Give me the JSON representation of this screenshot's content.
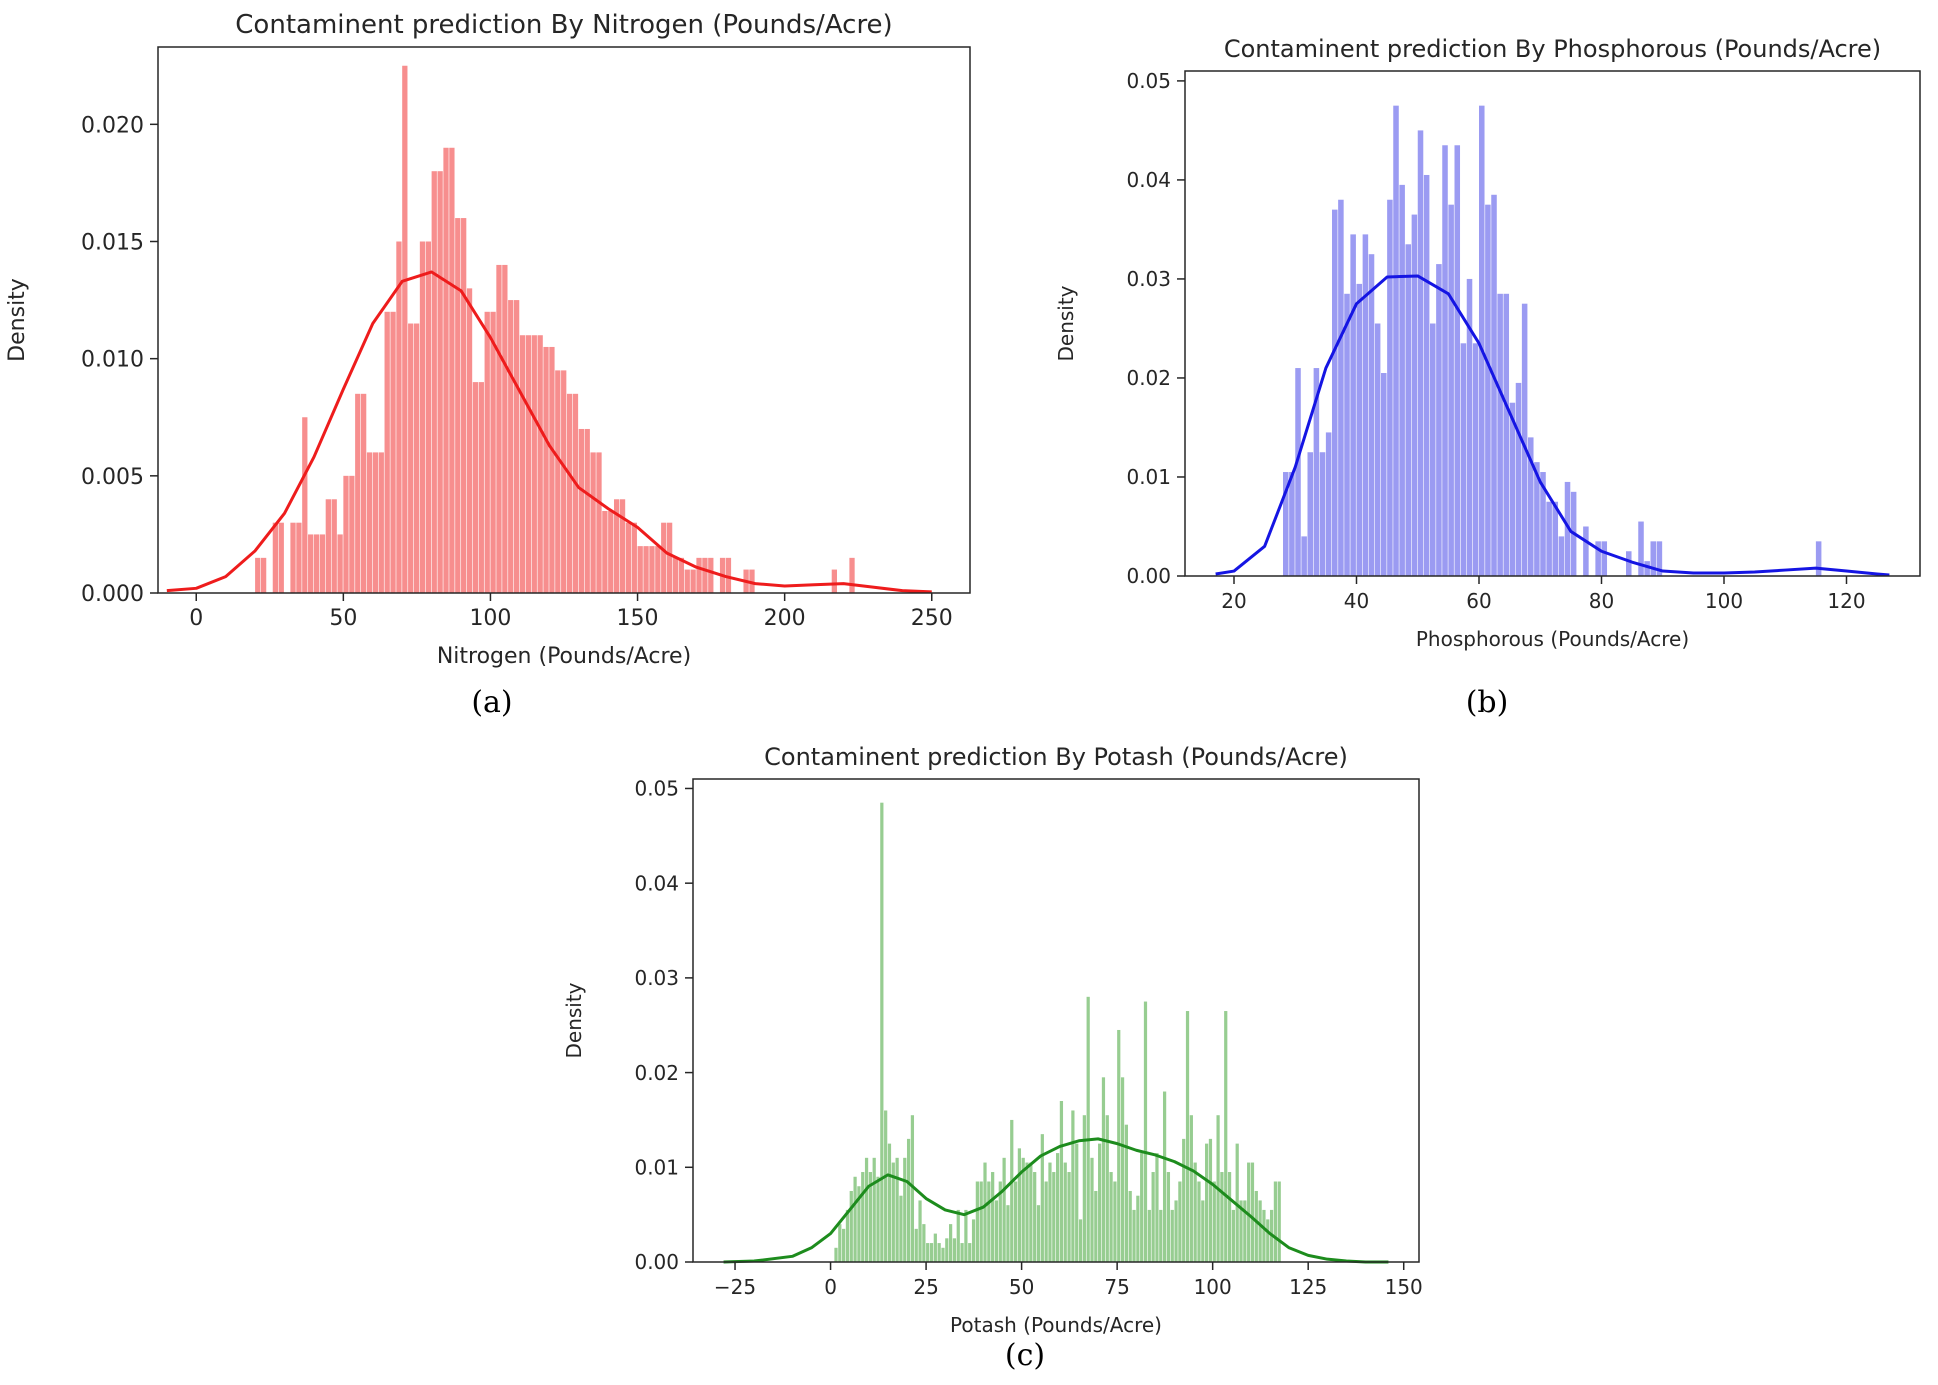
{
  "chart_data": [
    {
      "type": "histogram",
      "panel_label": "(a)",
      "title": "Contaminent prediction By Nitrogen (Pounds/Acre)",
      "xlabel": "Nitrogen (Pounds/Acre)",
      "ylabel": "Density",
      "xlim": [
        -13,
        263
      ],
      "ylim": [
        0,
        0.0233
      ],
      "xticks": [
        0,
        50,
        100,
        150,
        200,
        250
      ],
      "xtick_labels": [
        "0",
        "50",
        "100",
        "150",
        "200",
        "250"
      ],
      "yticks": [
        0,
        0.005,
        0.01,
        0.015,
        0.02
      ],
      "ytick_labels": [
        "0.000",
        "0.005",
        "0.010",
        "0.015",
        "0.020"
      ],
      "bar_color": "#f78e8e",
      "line_color": "#ee1c1c",
      "bin_start": 20,
      "bin_width": 2,
      "bar_heights": [
        0.0015,
        0.0015,
        0.0,
        0.003,
        0.003,
        0.0,
        0.003,
        0.003,
        0.0075,
        0.0025,
        0.0025,
        0.0025,
        0.004,
        0.004,
        0.0025,
        0.005,
        0.005,
        0.0085,
        0.0085,
        0.006,
        0.006,
        0.006,
        0.012,
        0.012,
        0.015,
        0.0225,
        0.0115,
        0.0115,
        0.015,
        0.015,
        0.018,
        0.018,
        0.019,
        0.019,
        0.016,
        0.016,
        0.013,
        0.009,
        0.009,
        0.012,
        0.012,
        0.014,
        0.014,
        0.0125,
        0.0125,
        0.011,
        0.011,
        0.011,
        0.011,
        0.0105,
        0.0105,
        0.0095,
        0.0095,
        0.0085,
        0.0085,
        0.007,
        0.007,
        0.006,
        0.006,
        0.0035,
        0.0035,
        0.004,
        0.004,
        0.003,
        0.003,
        0.002,
        0.002,
        0.002,
        0.002,
        0.003,
        0.003,
        0.0015,
        0.0015,
        0.001,
        0.001,
        0.0015,
        0.0015,
        0.0015,
        0.0,
        0.0015,
        0.0015,
        0.0,
        0.0,
        0.001,
        0.001,
        0.0,
        0.0,
        0.0,
        0.0,
        0.0,
        0.0,
        0.0,
        0.0,
        0.0,
        0.0,
        0.0,
        0.0,
        0.0,
        0.001,
        0.0,
        0.0,
        0.0015
      ],
      "kde_x": [
        -10,
        0,
        10,
        20,
        30,
        40,
        50,
        60,
        70,
        80,
        90,
        100,
        110,
        120,
        130,
        140,
        150,
        160,
        170,
        180,
        190,
        200,
        210,
        220,
        230,
        240,
        250
      ],
      "kde_y": [
        0.0001,
        0.0002,
        0.0007,
        0.0018,
        0.0034,
        0.0058,
        0.0087,
        0.0115,
        0.0133,
        0.0137,
        0.0129,
        0.0109,
        0.0086,
        0.0063,
        0.0045,
        0.0036,
        0.0028,
        0.0017,
        0.0011,
        0.0007,
        0.0004,
        0.0003,
        0.00035,
        0.0004,
        0.00025,
        0.0001,
        5e-05
      ]
    },
    {
      "type": "histogram",
      "panel_label": "(b)",
      "title": "Contaminent prediction By Phosphorous (Pounds/Acre)",
      "xlabel": "Phosphorous (Pounds/Acre)",
      "ylabel": "Density",
      "xlim": [
        12,
        132
      ],
      "ylim": [
        0,
        0.051
      ],
      "xticks": [
        20,
        40,
        60,
        80,
        100,
        120
      ],
      "xtick_labels": [
        "20",
        "40",
        "60",
        "80",
        "100",
        "120"
      ],
      "yticks": [
        0,
        0.01,
        0.02,
        0.03,
        0.04,
        0.05
      ],
      "ytick_labels": [
        "0.00",
        "0.01",
        "0.02",
        "0.03",
        "0.04",
        "0.05"
      ],
      "bar_color": "#9b9bf2",
      "line_color": "#1515e3",
      "bin_start": 28,
      "bin_width": 1,
      "bar_heights": [
        0.0105,
        0.0105,
        0.021,
        0.004,
        0.0125,
        0.021,
        0.0125,
        0.0145,
        0.037,
        0.038,
        0.0285,
        0.0345,
        0.0295,
        0.0345,
        0.0325,
        0.0255,
        0.0205,
        0.038,
        0.0475,
        0.0395,
        0.0335,
        0.0365,
        0.045,
        0.0405,
        0.0255,
        0.0315,
        0.0435,
        0.0375,
        0.0435,
        0.0235,
        0.03,
        0.0235,
        0.0475,
        0.0375,
        0.0385,
        0.0285,
        0.0285,
        0.0175,
        0.0195,
        0.0275,
        0.014,
        0.0115,
        0.0105,
        0.0075,
        0.0075,
        0.004,
        0.0095,
        0.0085,
        0.0,
        0.005,
        0.0,
        0.0035,
        0.0035,
        0.0,
        0.0,
        0.0,
        0.0025,
        0.0,
        0.0055,
        0.0015,
        0.0035,
        0.0035,
        0.0,
        0.0,
        0.0,
        0.0,
        0.0,
        0.0,
        0.0,
        0.0,
        0.0,
        0.0,
        0.0,
        0.0,
        0.0,
        0.0,
        0.0,
        0.0,
        0.0,
        0.0,
        0.0,
        0.0,
        0.0,
        0.0,
        0.0,
        0.0,
        0.0,
        0.0035
      ],
      "kde_x": [
        17,
        20,
        25,
        30,
        35,
        40,
        45,
        50,
        55,
        60,
        65,
        70,
        75,
        80,
        85,
        90,
        95,
        100,
        105,
        110,
        115,
        120,
        125,
        127
      ],
      "kde_y": [
        0.0002,
        0.0005,
        0.003,
        0.011,
        0.021,
        0.0275,
        0.0302,
        0.0303,
        0.0285,
        0.0235,
        0.0165,
        0.0095,
        0.0045,
        0.0025,
        0.0014,
        0.0005,
        0.0003,
        0.0003,
        0.0004,
        0.0006,
        0.0008,
        0.0005,
        0.0002,
        0.0001
      ]
    },
    {
      "type": "histogram",
      "panel_label": "(c)",
      "title": "Contaminent prediction By Potash (Pounds/Acre)",
      "xlabel": "Potash (Pounds/Acre)",
      "ylabel": "Density",
      "xlim": [
        -36,
        154
      ],
      "ylim": [
        0,
        0.051
      ],
      "xticks": [
        -25,
        0,
        25,
        50,
        75,
        100,
        125,
        150
      ],
      "xtick_labels": [
        "−25",
        "0",
        "25",
        "50",
        "75",
        "100",
        "125",
        "150"
      ],
      "yticks": [
        0,
        0.01,
        0.02,
        0.03,
        0.04,
        0.05
      ],
      "ytick_labels": [
        "0.00",
        "0.01",
        "0.02",
        "0.03",
        "0.04",
        "0.05"
      ],
      "bar_color": "#97cd91",
      "line_color": "#1d8c1d",
      "bin_start": 1,
      "bin_width": 1,
      "bar_heights": [
        0.0015,
        0.004,
        0.0035,
        0.0055,
        0.0075,
        0.009,
        0.008,
        0.0095,
        0.011,
        0.0095,
        0.011,
        0.009,
        0.0485,
        0.016,
        0.0125,
        0.0105,
        0.011,
        0.007,
        0.011,
        0.013,
        0.0155,
        0.0035,
        0.0065,
        0.004,
        0.002,
        0.002,
        0.003,
        0.002,
        0.0015,
        0.0025,
        0.004,
        0.0025,
        0.0055,
        0.002,
        0.0055,
        0.002,
        0.0045,
        0.0085,
        0.0085,
        0.0105,
        0.0085,
        0.0095,
        0.0065,
        0.0085,
        0.011,
        0.006,
        0.015,
        0.0085,
        0.012,
        0.011,
        0.0105,
        0.0105,
        0.0095,
        0.006,
        0.0135,
        0.0085,
        0.0105,
        0.0095,
        0.0115,
        0.017,
        0.0105,
        0.0095,
        0.016,
        0.0125,
        0.0045,
        0.0155,
        0.028,
        0.011,
        0.0075,
        0.0125,
        0.0195,
        0.0155,
        0.0095,
        0.0085,
        0.0245,
        0.0195,
        0.0145,
        0.0075,
        0.0055,
        0.007,
        0.0115,
        0.0275,
        0.0055,
        0.0095,
        0.0115,
        0.0055,
        0.018,
        0.0095,
        0.0055,
        0.0065,
        0.0085,
        0.013,
        0.0265,
        0.0155,
        0.0105,
        0.0085,
        0.0065,
        0.0125,
        0.013,
        0.0085,
        0.0155,
        0.0095,
        0.0265,
        0.0095,
        0.0055,
        0.0125,
        0.0065,
        0.0065,
        0.0105,
        0.0105,
        0.0075,
        0.0065,
        0.0055,
        0.0045,
        0.0055,
        0.0085,
        0.0085
      ],
      "kde_x": [
        -28,
        -20,
        -10,
        -5,
        0,
        5,
        10,
        15,
        20,
        25,
        30,
        35,
        40,
        45,
        50,
        55,
        60,
        65,
        70,
        75,
        80,
        85,
        90,
        95,
        100,
        105,
        110,
        115,
        120,
        125,
        130,
        135,
        140,
        146
      ],
      "kde_y": [
        0.0,
        0.0001,
        0.0006,
        0.0015,
        0.003,
        0.0055,
        0.008,
        0.0092,
        0.0085,
        0.0067,
        0.0055,
        0.005,
        0.0058,
        0.0075,
        0.0095,
        0.0112,
        0.0122,
        0.0128,
        0.013,
        0.0125,
        0.0118,
        0.0113,
        0.0106,
        0.0096,
        0.0082,
        0.0065,
        0.0048,
        0.003,
        0.0015,
        0.0007,
        0.0003,
        0.0001,
        0.0,
        0.0
      ]
    }
  ]
}
